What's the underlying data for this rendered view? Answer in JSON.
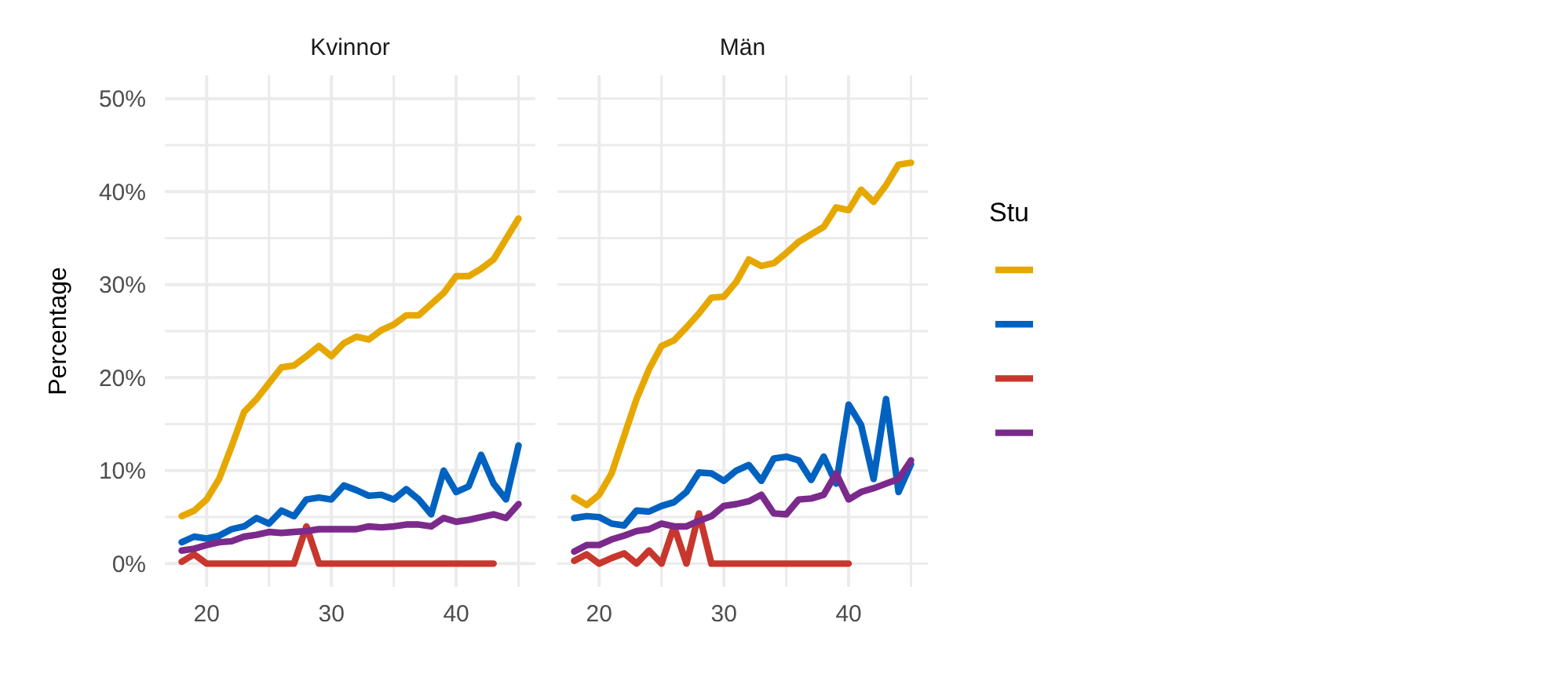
{
  "chart_data": [
    {
      "type": "line",
      "title": "Kvinnor",
      "ylabel": "Percentage",
      "x": [
        18,
        19,
        20,
        21,
        22,
        23,
        24,
        25,
        26,
        27,
        28,
        29,
        30,
        31,
        32,
        33,
        34,
        35,
        36,
        37,
        38,
        39,
        40,
        41,
        42,
        43,
        44,
        45
      ],
      "xlim": [
        16.65,
        46.35
      ],
      "xticks": [
        20,
        {
          "value": 25,
          "label": null
        },
        30,
        {
          "value": 35,
          "label": null
        },
        40,
        {
          "value": 45,
          "label": null
        }
      ],
      "ylim": [
        -2.5,
        52.5
      ],
      "yticks": [
        {
          "value": 0,
          "label": "0%"
        },
        {
          "value": 5,
          "label": null
        },
        {
          "value": 10,
          "label": "10%"
        },
        {
          "value": 15,
          "label": null
        },
        {
          "value": 20,
          "label": "20%"
        },
        {
          "value": 25,
          "label": null
        },
        {
          "value": 30,
          "label": "30%"
        },
        {
          "value": 35,
          "label": null
        },
        {
          "value": 40,
          "label": "40%"
        },
        {
          "value": 45,
          "label": null
        },
        {
          "value": 50,
          "label": "50%"
        }
      ],
      "grid": true,
      "series": [
        {
          "color": "#e6a800",
          "values": [
            5.1,
            5.7,
            6.9,
            9.1,
            12.6,
            16.3,
            17.7,
            19.4,
            21.1,
            21.3,
            22.3,
            23.4,
            22.3,
            23.7,
            24.4,
            24.1,
            25.1,
            25.7,
            26.7,
            26.7,
            27.9,
            29.1,
            30.9,
            30.9,
            31.7,
            32.7,
            34.9,
            37.1
          ]
        },
        {
          "color": "#0062c0",
          "values": [
            2.3,
            2.9,
            2.7,
            3.0,
            3.7,
            4.0,
            4.9,
            4.3,
            5.7,
            5.1,
            6.9,
            7.1,
            6.9,
            8.4,
            7.9,
            7.3,
            7.4,
            6.9,
            8.0,
            6.9,
            5.3,
            10.0,
            7.7,
            8.3,
            11.7,
            8.6,
            6.9,
            12.7
          ]
        },
        {
          "color": "#c8372d",
          "values": [
            0.2,
            1.0,
            0,
            0,
            0,
            0,
            0,
            0,
            0,
            0,
            4.0,
            0,
            0,
            0,
            0,
            0,
            0,
            0,
            0,
            0,
            0,
            0,
            0,
            0,
            0,
            0,
            null,
            null
          ]
        },
        {
          "color": "#7b2a8c",
          "values": [
            1.4,
            1.6,
            2.0,
            2.3,
            2.4,
            2.9,
            3.1,
            3.4,
            3.3,
            3.4,
            3.5,
            3.7,
            3.7,
            3.7,
            3.7,
            4.0,
            3.9,
            4.0,
            4.2,
            4.2,
            4.0,
            4.9,
            4.5,
            4.7,
            5.0,
            5.3,
            4.9,
            6.4
          ]
        }
      ]
    },
    {
      "type": "line",
      "title": "Män",
      "tick_labels": "x",
      "legend_title": "Stu",
      "x": [
        18,
        19,
        20,
        21,
        22,
        23,
        24,
        25,
        26,
        27,
        28,
        29,
        30,
        31,
        32,
        33,
        34,
        35,
        36,
        37,
        38,
        39,
        40,
        41,
        42,
        43,
        44,
        45
      ],
      "xlim": [
        16.65,
        46.35
      ],
      "xticks": [
        20,
        {
          "value": 25,
          "label": null
        },
        30,
        {
          "value": 35,
          "label": null
        },
        40,
        {
          "value": 45,
          "label": null
        }
      ],
      "ylim": [
        -2.5,
        52.5
      ],
      "yticks": [
        {
          "value": 0,
          "label": null
        },
        {
          "value": 5,
          "label": null
        },
        {
          "value": 10,
          "label": null
        },
        {
          "value": 15,
          "label": null
        },
        {
          "value": 20,
          "label": null
        },
        {
          "value": 25,
          "label": null
        },
        {
          "value": 30,
          "label": null
        },
        {
          "value": 35,
          "label": null
        },
        {
          "value": 40,
          "label": null
        },
        {
          "value": 45,
          "label": null
        },
        {
          "value": 50,
          "label": null
        }
      ],
      "grid": true,
      "series": [
        {
          "color": "#e6a800",
          "values": [
            7.1,
            6.3,
            7.4,
            9.7,
            13.7,
            17.7,
            20.9,
            23.4,
            24.0,
            25.4,
            26.9,
            28.6,
            28.7,
            30.3,
            32.7,
            32.0,
            32.3,
            33.4,
            34.6,
            35.4,
            36.2,
            38.3,
            38.0,
            40.2,
            38.9,
            40.7,
            42.9,
            43.1
          ]
        },
        {
          "color": "#0062c0",
          "values": [
            4.9,
            5.1,
            5.0,
            4.3,
            4.1,
            5.7,
            5.6,
            6.2,
            6.6,
            7.7,
            9.8,
            9.7,
            8.9,
            10.0,
            10.6,
            8.9,
            11.3,
            11.5,
            11.1,
            9.0,
            11.5,
            8.6,
            17.1,
            14.9,
            9.1,
            17.7,
            7.7,
            10.7
          ]
        },
        {
          "color": "#c8372d",
          "values": [
            0.3,
            1.0,
            0,
            0.6,
            1.1,
            0,
            1.4,
            0,
            4.0,
            0,
            5.4,
            0,
            0,
            0,
            0,
            0,
            0,
            0,
            0,
            0,
            0,
            0,
            0,
            null,
            null,
            null,
            null,
            null
          ]
        },
        {
          "color": "#7b2a8c",
          "values": [
            1.3,
            2.0,
            2.0,
            2.6,
            3.0,
            3.5,
            3.7,
            4.3,
            4.0,
            4.0,
            4.6,
            5.1,
            6.2,
            6.4,
            6.7,
            7.4,
            5.4,
            5.3,
            6.9,
            7.0,
            7.4,
            9.7,
            6.9,
            7.7,
            8.1,
            8.6,
            9.1,
            11.1
          ]
        }
      ]
    }
  ]
}
